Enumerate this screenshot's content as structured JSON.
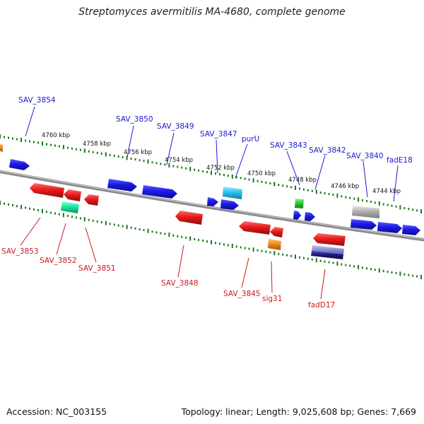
{
  "title": "Streptomyces avermitilis MA-4680, complete genome",
  "accession_text": "Accession: NC_003155",
  "summary_text": "Topology: linear; Length: 9,025,608 bp; Genes: 7,669",
  "colors": {
    "forward_label": "#1a1acc",
    "reverse_label": "#cc1a1a",
    "backbone": "#8a8a8a",
    "tick": "#1a7a1a",
    "blue_gene": "#1a1ae6",
    "red_gene": "#e61a1a",
    "cyan_gene": "#29c2ee",
    "green_gene": "#2ecc2e",
    "teal_gene": "#1ae6a0",
    "orange_gene": "#f28a1a",
    "gray_gene": "#b0b0b0",
    "navy_gene": "#1a1a80"
  },
  "scale_labels": [
    "4760 kbp",
    "4758 kbp",
    "4756 kbp",
    "4754 kbp",
    "4752 kbp",
    "4750 kbp",
    "4748 kbp",
    "4746 kbp",
    "4744 kbp"
  ],
  "forward_gene_labels": [
    "SAV_3854",
    "SAV_3850",
    "SAV_3849",
    "SAV_3847",
    "purU",
    "SAV_3843",
    "SAV_3842",
    "SAV_3840",
    "fadE18"
  ],
  "reverse_gene_labels": [
    "SAV_3853",
    "SAV_3852",
    "SAV_3851",
    "SAV_3848",
    "SAV_3845",
    "sig31",
    "fadD17"
  ],
  "features": [
    {
      "name": "orange-edge-gene",
      "color": "orange"
    },
    {
      "name": "blue-gene-1",
      "color": "blue"
    },
    {
      "name": "blue-gene-2",
      "color": "blue"
    },
    {
      "name": "blue-gene-3",
      "color": "blue"
    },
    {
      "name": "blue-gene-4",
      "color": "blue"
    },
    {
      "name": "blue-gene-5",
      "color": "blue"
    },
    {
      "name": "cyan-gene",
      "color": "cyan"
    },
    {
      "name": "green-gene",
      "color": "green"
    },
    {
      "name": "blue-gene-6",
      "color": "blue"
    },
    {
      "name": "blue-gene-7",
      "color": "blue"
    },
    {
      "name": "gray-gene",
      "color": "gray"
    },
    {
      "name": "blue-gene-8",
      "color": "blue"
    },
    {
      "name": "blue-gene-9",
      "color": "blue"
    },
    {
      "name": "blue-gene-10",
      "color": "blue"
    },
    {
      "name": "red-gene-1",
      "color": "red"
    },
    {
      "name": "red-gene-2",
      "color": "red"
    },
    {
      "name": "red-gene-3",
      "color": "red"
    },
    {
      "name": "teal-gene",
      "color": "teal"
    },
    {
      "name": "red-gene-4",
      "color": "red"
    },
    {
      "name": "red-gene-5",
      "color": "red"
    },
    {
      "name": "red-gene-6",
      "color": "red"
    },
    {
      "name": "orange-gene",
      "color": "orange"
    },
    {
      "name": "red-gene-7",
      "color": "red"
    },
    {
      "name": "lavender-gene",
      "color": "lavender"
    },
    {
      "name": "navy-gene",
      "color": "navy"
    }
  ]
}
